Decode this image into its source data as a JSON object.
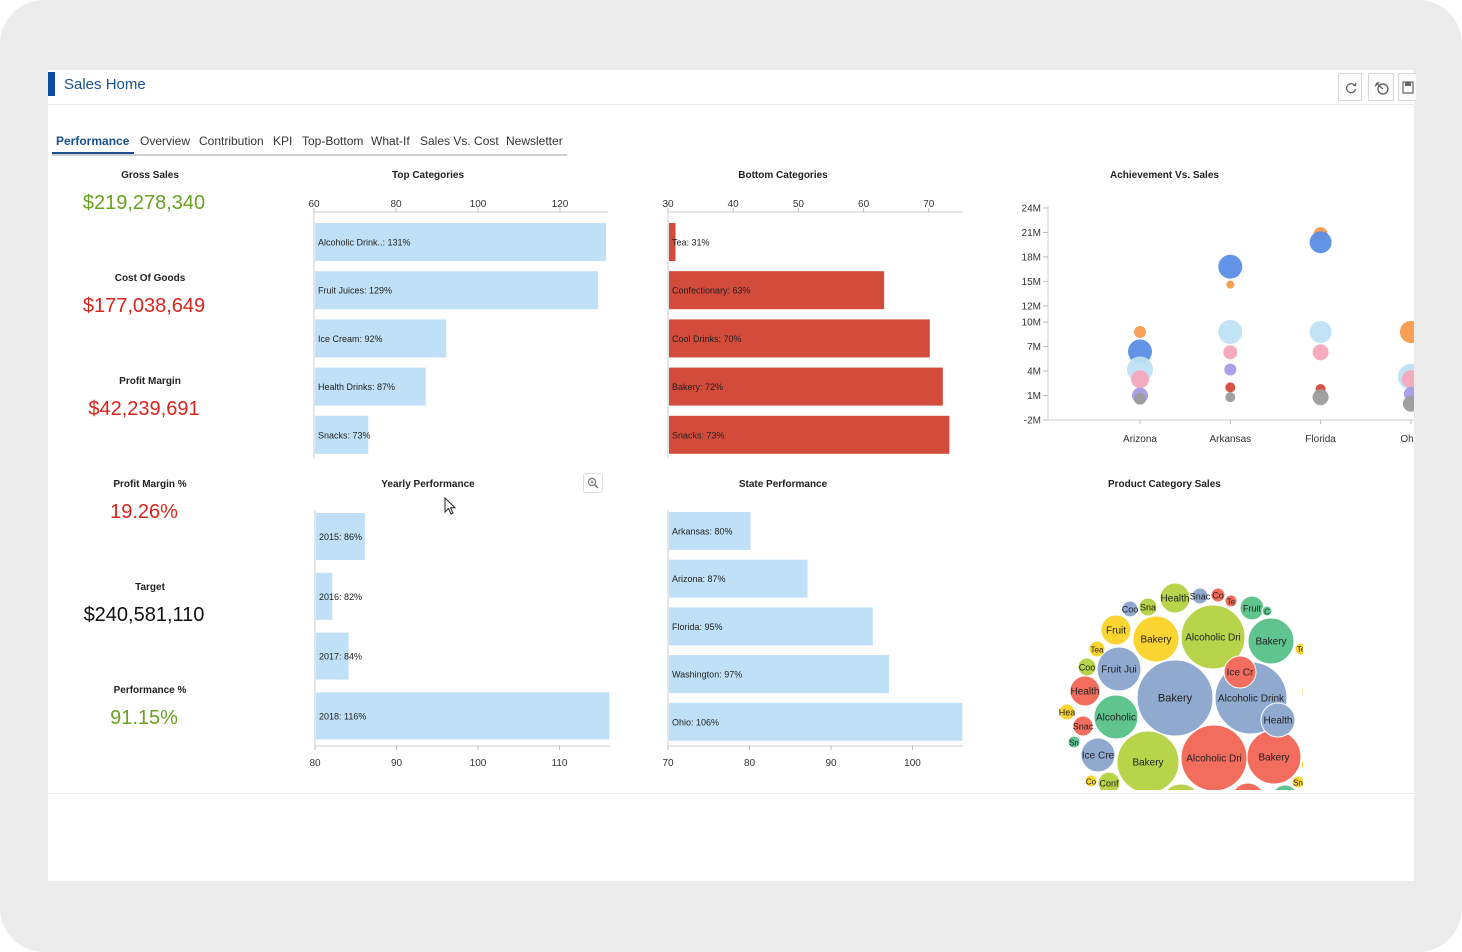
{
  "app": {
    "title": "Sales Home",
    "accent_color": "#0c4a9e"
  },
  "toolbar": [
    {
      "icon": "refresh-icon",
      "label": "Refresh"
    },
    {
      "icon": "clear-filter-icon",
      "label": "Clear filter"
    },
    {
      "icon": "save-icon",
      "label": "Save"
    }
  ],
  "tabs": [
    {
      "label": "Performance",
      "active": true
    },
    {
      "label": "Overview"
    },
    {
      "label": "Contribution"
    },
    {
      "label": "KPI"
    },
    {
      "label": "Top-Bottom"
    },
    {
      "label": "What-If"
    },
    {
      "label": "Sales Vs. Cost"
    },
    {
      "label": "Newsletter"
    }
  ],
  "kpis": [
    {
      "label": "Gross Sales",
      "value": "$219,278,340",
      "color": "#6aa121"
    },
    {
      "label": "Cost Of Goods",
      "value": "$177,038,649",
      "color": "#d8241c"
    },
    {
      "label": "Profit Margin",
      "value": "$42,239,691",
      "color": "#d8241c"
    },
    {
      "label": "Profit Margin %",
      "value": "19.26%",
      "color": "#d8241c"
    },
    {
      "label": "Target",
      "value": "$240,581,110",
      "color": "#111111"
    },
    {
      "label": "Performance %",
      "value": "91.15%",
      "color": "#6aa121"
    }
  ],
  "chart_data": [
    {
      "id": "top_categories",
      "type": "bar",
      "title": "Top Categories",
      "orientation": "horizontal",
      "axis_position": "top",
      "xlim": [
        60,
        140
      ],
      "ticks": [
        60,
        80,
        100,
        120,
        140
      ],
      "color": "#bfe0f6",
      "categories": [
        "Alcoholic Drink..",
        "Fruit Juices",
        "Ice Cream",
        "Health Drinks",
        "Snacks"
      ],
      "values": [
        131,
        129,
        92,
        87,
        73
      ],
      "labels": [
        "Alcoholic Drink..: 131%",
        "Fruit Juices: 129%",
        "Ice Cream: 92%",
        "Health Drinks: 87%",
        "Snacks: 73%"
      ]
    },
    {
      "id": "bottom_categories",
      "type": "bar",
      "title": "Bottom Categories",
      "orientation": "horizontal",
      "axis_position": "top",
      "xlim": [
        30,
        80
      ],
      "ticks": [
        30,
        40,
        50,
        60,
        70,
        80
      ],
      "color": "#d24b3b",
      "categories": [
        "Tea",
        "Confectionary",
        "Cool Drinks",
        "Bakery",
        "Snacks"
      ],
      "values": [
        31,
        63,
        70,
        72,
        73
      ],
      "labels": [
        "Tea: 31%",
        "Confectionary: 63%",
        "Cool Drinks: 70%",
        "Bakery: 72%",
        "Snacks: 73%"
      ]
    },
    {
      "id": "achievement_vs_sales",
      "type": "scatter",
      "title": "Achievement Vs. Sales",
      "categories": [
        "Arizona",
        "Arkansas",
        "Florida",
        "Ohio"
      ],
      "y_ticks": [
        "24M",
        "21M",
        "18M",
        "15M",
        "12M",
        "10M",
        "7M",
        "4M",
        "1M",
        "-2M"
      ],
      "ylim": [
        -2,
        24
      ],
      "points": [
        {
          "x": "Arizona",
          "y": 8.8,
          "size": 6,
          "color": "#f59a4c"
        },
        {
          "x": "Arizona",
          "y": 6.4,
          "size": 12,
          "color": "#5b8ee6"
        },
        {
          "x": "Arizona",
          "y": 4.2,
          "size": 13,
          "color": "#bfe0f6"
        },
        {
          "x": "Arizona",
          "y": 3.0,
          "size": 9,
          "color": "#f7a8bb"
        },
        {
          "x": "Arizona",
          "y": 1.0,
          "size": 8,
          "color": "#a79be8"
        },
        {
          "x": "Arizona",
          "y": 0.6,
          "size": 6,
          "color": "#9c9c9c"
        },
        {
          "x": "Arkansas",
          "y": 16.8,
          "size": 12,
          "color": "#5b8ee6"
        },
        {
          "x": "Arkansas",
          "y": 14.6,
          "size": 4,
          "color": "#f59a4c"
        },
        {
          "x": "Arkansas",
          "y": 8.8,
          "size": 12,
          "color": "#bfe0f6"
        },
        {
          "x": "Arkansas",
          "y": 6.3,
          "size": 7,
          "color": "#f7a8bb"
        },
        {
          "x": "Arkansas",
          "y": 4.2,
          "size": 6,
          "color": "#a79be8"
        },
        {
          "x": "Arkansas",
          "y": 2.0,
          "size": 5,
          "color": "#d24b3b"
        },
        {
          "x": "Arkansas",
          "y": 0.8,
          "size": 5,
          "color": "#9c9c9c"
        },
        {
          "x": "Florida",
          "y": 20.8,
          "size": 7,
          "color": "#f59a4c"
        },
        {
          "x": "Florida",
          "y": 19.8,
          "size": 11,
          "color": "#5b8ee6"
        },
        {
          "x": "Florida",
          "y": 8.8,
          "size": 11,
          "color": "#bfe0f6"
        },
        {
          "x": "Florida",
          "y": 6.3,
          "size": 8,
          "color": "#f7a8bb"
        },
        {
          "x": "Florida",
          "y": 1.8,
          "size": 5,
          "color": "#d24b3b"
        },
        {
          "x": "Florida",
          "y": 0.8,
          "size": 8,
          "color": "#9c9c9c"
        },
        {
          "x": "Ohio",
          "y": 8.8,
          "size": 11,
          "color": "#f59a4c"
        },
        {
          "x": "Ohio",
          "y": 3.3,
          "size": 13,
          "color": "#bfe0f6"
        },
        {
          "x": "Ohio",
          "y": 3.0,
          "size": 9,
          "color": "#f7a8bb"
        },
        {
          "x": "Ohio",
          "y": 1.2,
          "size": 7,
          "color": "#a79be8"
        },
        {
          "x": "Ohio",
          "y": 0.0,
          "size": 8,
          "color": "#9c9c9c"
        }
      ]
    },
    {
      "id": "yearly_performance",
      "type": "bar",
      "title": "Yearly Performance",
      "orientation": "horizontal",
      "axis_position": "bottom",
      "xlim": [
        80,
        120
      ],
      "ticks": [
        80,
        90,
        100,
        110,
        120
      ],
      "color": "#bfe0f6",
      "categories": [
        "2015",
        "2016",
        "2017",
        "2018"
      ],
      "values": [
        86,
        82,
        84,
        116
      ],
      "labels": [
        "2015: 86%",
        "2016: 82%",
        "2017: 84%",
        "2018: 116%"
      ]
    },
    {
      "id": "state_performance",
      "type": "bar",
      "title": "State Performance",
      "orientation": "horizontal",
      "axis_position": "bottom",
      "xlim": [
        70,
        110
      ],
      "ticks": [
        70,
        80,
        90,
        100,
        110
      ],
      "color": "#bfe0f6",
      "categories": [
        "Arkansas",
        "Arizona",
        "Florida",
        "Washington",
        "Ohio"
      ],
      "values": [
        80,
        87,
        95,
        97,
        106
      ],
      "labels": [
        "Arkansas: 80%",
        "Arizona: 87%",
        "Florida: 95%",
        "Washington: 97%",
        "Ohio: 106%"
      ]
    },
    {
      "id": "product_category_sales",
      "type": "bubble",
      "title": "Product Category Sales",
      "bubbles": [
        {
          "label": "Bakery",
          "color": "#8fa9cf"
        },
        {
          "label": "Alcoholic Drink",
          "color": "#8fa9cf"
        },
        {
          "label": "Alcoholic Dri",
          "color": "#b7d44a"
        },
        {
          "label": "Alcoholic Dri",
          "color": "#f26d5d"
        },
        {
          "label": "Bakery",
          "color": "#b7d44a"
        },
        {
          "label": "Bakery",
          "color": "#fad531"
        },
        {
          "label": "Bakery",
          "color": "#5fc48e"
        },
        {
          "label": "Bakery",
          "color": "#f26d5d"
        },
        {
          "label": "Fruit Jui",
          "color": "#8fa9cf"
        },
        {
          "label": "Alcoholic",
          "color": "#5fc48e"
        },
        {
          "label": "Fruit Jui",
          "color": "#b7d44a"
        },
        {
          "label": "Ice Cre",
          "color": "#b7d44a"
        },
        {
          "label": "Health",
          "color": "#8fa9cf"
        },
        {
          "label": "Ice Cre",
          "color": "#8fa9cf"
        },
        {
          "label": "Fruit Ju",
          "color": "#f26d5d"
        },
        {
          "label": "Alcohol",
          "color": "#fad531"
        },
        {
          "label": "Health",
          "color": "#b7d44a"
        },
        {
          "label": "Ice Cr",
          "color": "#f26d5d"
        },
        {
          "label": "Ice Cr",
          "color": "#fad531"
        },
        {
          "label": "Health",
          "color": "#f26d5d"
        },
        {
          "label": "Fruit",
          "color": "#fad531"
        },
        {
          "label": "Fruit",
          "color": "#5fc48e"
        },
        {
          "label": "Ice C",
          "color": "#5fc48e"
        },
        {
          "label": "Heal",
          "color": "#5fc48e"
        },
        {
          "label": "Conf",
          "color": "#b7d44a"
        },
        {
          "label": "Conf",
          "color": "#8fa9cf"
        },
        {
          "label": "Con",
          "color": "#f26d5d"
        },
        {
          "label": "Tea",
          "color": "#8fa9cf"
        },
        {
          "label": "Coo",
          "color": "#b7d44a"
        },
        {
          "label": "Coo",
          "color": "#8fa9cf"
        },
        {
          "label": "Sna",
          "color": "#b7d44a"
        },
        {
          "label": "Snac",
          "color": "#f26d5d"
        },
        {
          "label": "Snac",
          "color": "#8fa9cf"
        },
        {
          "label": "Hea",
          "color": "#fad531"
        },
        {
          "label": "Co",
          "color": "#f26d5d"
        },
        {
          "label": "Te",
          "color": "#f26d5d"
        },
        {
          "label": "Tea",
          "color": "#fad531"
        },
        {
          "label": "Te",
          "color": "#5fc48e"
        },
        {
          "label": "Te",
          "color": "#fad531"
        },
        {
          "label": "C",
          "color": "#5fc48e"
        },
        {
          "label": "Sn",
          "color": "#5fc48e"
        },
        {
          "label": "C",
          "color": "#fad531"
        },
        {
          "label": "Sn",
          "color": "#fad531"
        },
        {
          "label": "Co",
          "color": "#fad531"
        },
        {
          "label": "Co",
          "color": "#5fc48e"
        }
      ]
    }
  ]
}
